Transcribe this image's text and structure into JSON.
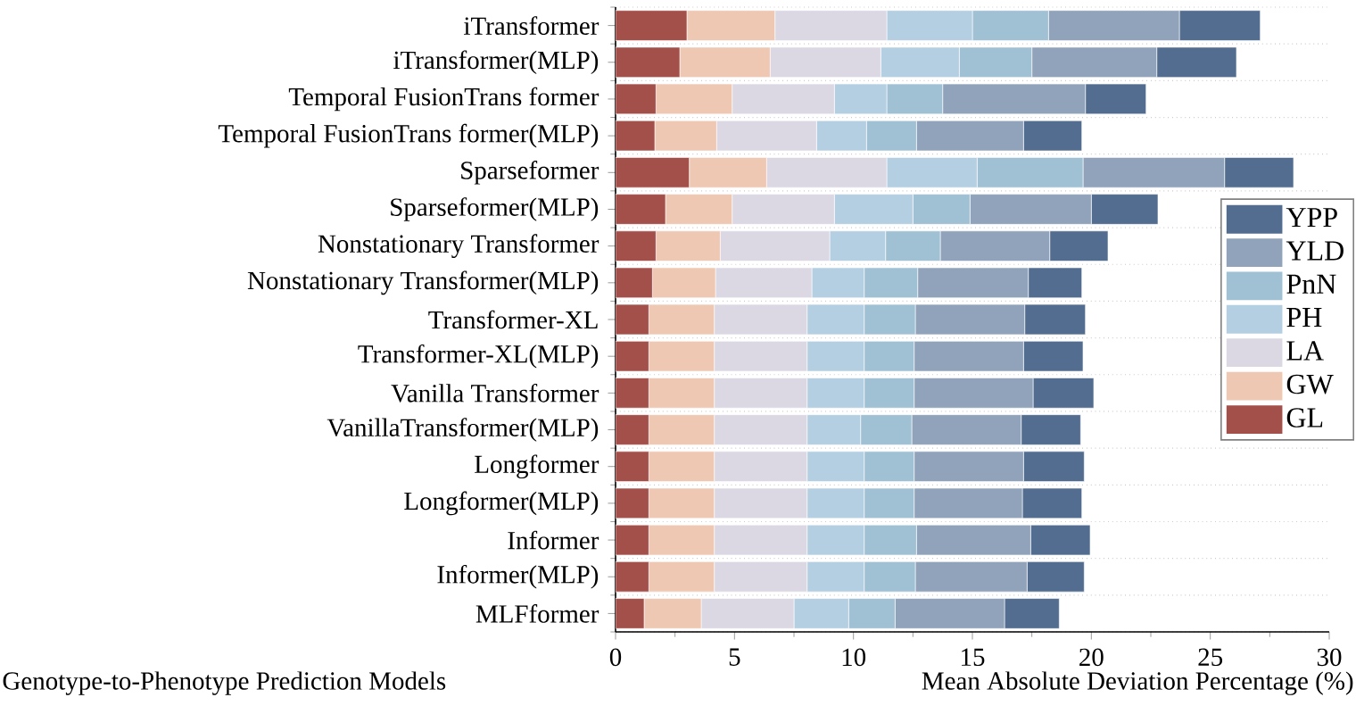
{
  "chart_data": {
    "type": "bar",
    "orientation": "horizontal",
    "stacked": true,
    "xlabel": "Mean Absolute Deviation Percentage (%)",
    "ylabel": "Genotype-to-Phenotype Prediction Models",
    "categories": [
      "iTransformer",
      "iTransformer(MLP)",
      "Temporal FusionTrans former",
      "Temporal FusionTrans former(MLP)",
      "Sparseformer",
      "Sparseformer(MLP)",
      "Nonstationary Transformer",
      "Nonstationary Transformer(MLP)",
      "Transformer-XL",
      "Transformer-XL(MLP)",
      "Vanilla Transformer",
      "VanillaTransformer(MLP)",
      "Longformer",
      "Longformer(MLP)",
      "Informer",
      "Informer(MLP)",
      "MLFformer"
    ],
    "series": [
      {
        "name": "GL",
        "color": "#a4504a",
        "values": [
          3.0,
          2.7,
          1.7,
          1.65,
          3.1,
          2.1,
          1.7,
          1.55,
          1.4,
          1.4,
          1.4,
          1.4,
          1.4,
          1.4,
          1.4,
          1.4,
          1.2
        ]
      },
      {
        "name": "GW",
        "color": "#eec8b3",
        "values": [
          3.7,
          3.8,
          3.2,
          2.6,
          3.25,
          2.8,
          2.7,
          2.65,
          2.75,
          2.75,
          2.75,
          2.75,
          2.75,
          2.75,
          2.75,
          2.75,
          2.4
        ]
      },
      {
        "name": "LA",
        "color": "#dbd8e4",
        "values": [
          4.7,
          4.65,
          4.3,
          4.2,
          5.05,
          4.3,
          4.6,
          4.05,
          3.9,
          3.9,
          3.9,
          3.9,
          3.9,
          3.9,
          3.9,
          3.9,
          3.9
        ]
      },
      {
        "name": "PH",
        "color": "#b5cfe2",
        "values": [
          3.6,
          3.3,
          2.2,
          2.1,
          3.8,
          3.3,
          2.35,
          2.2,
          2.4,
          2.4,
          2.4,
          2.25,
          2.4,
          2.4,
          2.4,
          2.4,
          2.3
        ]
      },
      {
        "name": "PnN",
        "color": "#a0c0d4",
        "values": [
          3.2,
          3.05,
          2.35,
          2.1,
          4.45,
          2.4,
          2.3,
          2.25,
          2.15,
          2.1,
          2.1,
          2.15,
          2.1,
          2.1,
          2.2,
          2.15,
          1.95
        ]
      },
      {
        "name": "YLD",
        "color": "#90a3ba",
        "values": [
          5.5,
          5.25,
          6.0,
          4.5,
          5.95,
          5.1,
          4.6,
          4.65,
          4.6,
          4.6,
          5.0,
          4.6,
          4.6,
          4.55,
          4.8,
          4.7,
          4.6
        ]
      },
      {
        "name": "YPP",
        "color": "#526d8f",
        "values": [
          3.4,
          3.35,
          2.55,
          2.45,
          2.9,
          2.8,
          2.45,
          2.25,
          2.55,
          2.5,
          2.55,
          2.5,
          2.55,
          2.5,
          2.5,
          2.4,
          2.3
        ]
      }
    ],
    "xlim": [
      0,
      30
    ],
    "xticks": [
      0,
      5,
      10,
      15,
      20,
      25,
      30
    ],
    "grid": "y",
    "legend": "right"
  }
}
